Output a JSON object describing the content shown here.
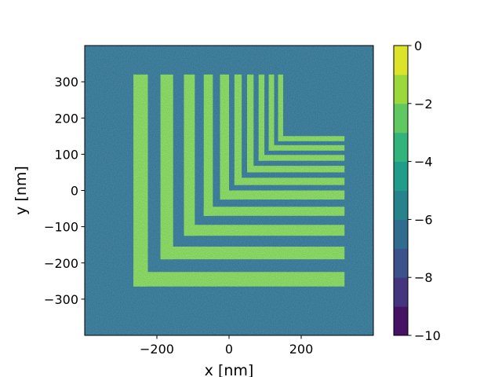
{
  "chart_data": {
    "type": "heatmap",
    "title": "",
    "xlabel": "x [nm]",
    "ylabel": "y [nm]",
    "xlim": [
      -400,
      400
    ],
    "ylim": [
      -400,
      400
    ],
    "xticks": [
      -200,
      0,
      200
    ],
    "xtick_labels": [
      "−200",
      "0",
      "200"
    ],
    "yticks": [
      -300,
      -200,
      -100,
      0,
      100,
      200,
      300
    ],
    "ytick_labels": [
      "−300",
      "−200",
      "−100",
      "0",
      "100",
      "200",
      "300"
    ],
    "colorbar": {
      "colormap": "viridis",
      "vmin": -10,
      "vmax": 0,
      "levels": [
        -10,
        -9,
        -8,
        -7,
        -6,
        -5,
        -4,
        -3,
        -2,
        -1,
        0
      ],
      "ticks": [
        -10,
        -8,
        -6,
        -4,
        -2,
        0
      ],
      "tick_labels": [
        "−10",
        "−8",
        "−6",
        "−4",
        "−2",
        "0"
      ]
    },
    "background_level": -6.5,
    "feature_level": -2.5,
    "features": {
      "shape": "nested L-shaped lines (vertical arm top-left, horizontal arm bottom-right)",
      "corner_top_y": 320,
      "arm_end_x": 320,
      "lines": [
        {
          "x_left": -265,
          "x_right": -225,
          "y_top": -225,
          "y_bottom": -265
        },
        {
          "x_left": -190,
          "x_right": -155,
          "y_top": -155,
          "y_bottom": -190
        },
        {
          "x_left": -125,
          "x_right": -95,
          "y_top": -95,
          "y_bottom": -125
        },
        {
          "x_left": -70,
          "x_right": -45,
          "y_top": -45,
          "y_bottom": -70
        },
        {
          "x_left": -25,
          "x_right": 0,
          "y_top": 0,
          "y_bottom": -25
        },
        {
          "x_left": 15,
          "x_right": 35,
          "y_top": 35,
          "y_bottom": 15
        },
        {
          "x_left": 50,
          "x_right": 68,
          "y_top": 68,
          "y_bottom": 50
        },
        {
          "x_left": 82,
          "x_right": 98,
          "y_top": 98,
          "y_bottom": 82
        },
        {
          "x_left": 110,
          "x_right": 125,
          "y_top": 125,
          "y_bottom": 110
        },
        {
          "x_left": 136,
          "x_right": 150,
          "y_top": 150,
          "y_bottom": 136
        }
      ]
    },
    "grid": false
  }
}
